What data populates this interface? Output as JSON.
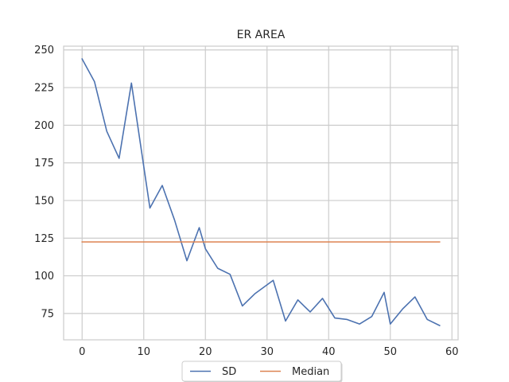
{
  "chart_data": {
    "type": "line",
    "title": "ER AREA",
    "xlabel": "",
    "ylabel": "",
    "xlim": [
      -3,
      61
    ],
    "ylim": [
      57.5,
      252.5
    ],
    "x_ticks": [
      0,
      10,
      20,
      30,
      40,
      50,
      60
    ],
    "y_ticks": [
      75,
      100,
      125,
      150,
      175,
      200,
      225,
      250
    ],
    "grid": true,
    "legend_placement": "bottom-center",
    "series": [
      {
        "name": "SD",
        "color": "#4c72b0",
        "x": [
          0,
          2,
          4,
          6,
          8,
          11,
          13,
          15,
          17,
          19,
          20,
          22,
          24,
          26,
          28,
          31,
          33,
          35,
          37,
          39,
          41,
          43,
          45,
          47,
          49,
          50,
          52,
          54,
          56,
          58
        ],
        "y": [
          244,
          229,
          196,
          178,
          228,
          145,
          160,
          137,
          110,
          132,
          118,
          105,
          101,
          80,
          88,
          97,
          70,
          84,
          76,
          85,
          72,
          71,
          68,
          73,
          89,
          68,
          78,
          86,
          71,
          67
        ]
      },
      {
        "name": "Median",
        "color": "#dd8452",
        "x": [
          0,
          58
        ],
        "y": [
          122.5,
          122.5
        ]
      }
    ]
  }
}
